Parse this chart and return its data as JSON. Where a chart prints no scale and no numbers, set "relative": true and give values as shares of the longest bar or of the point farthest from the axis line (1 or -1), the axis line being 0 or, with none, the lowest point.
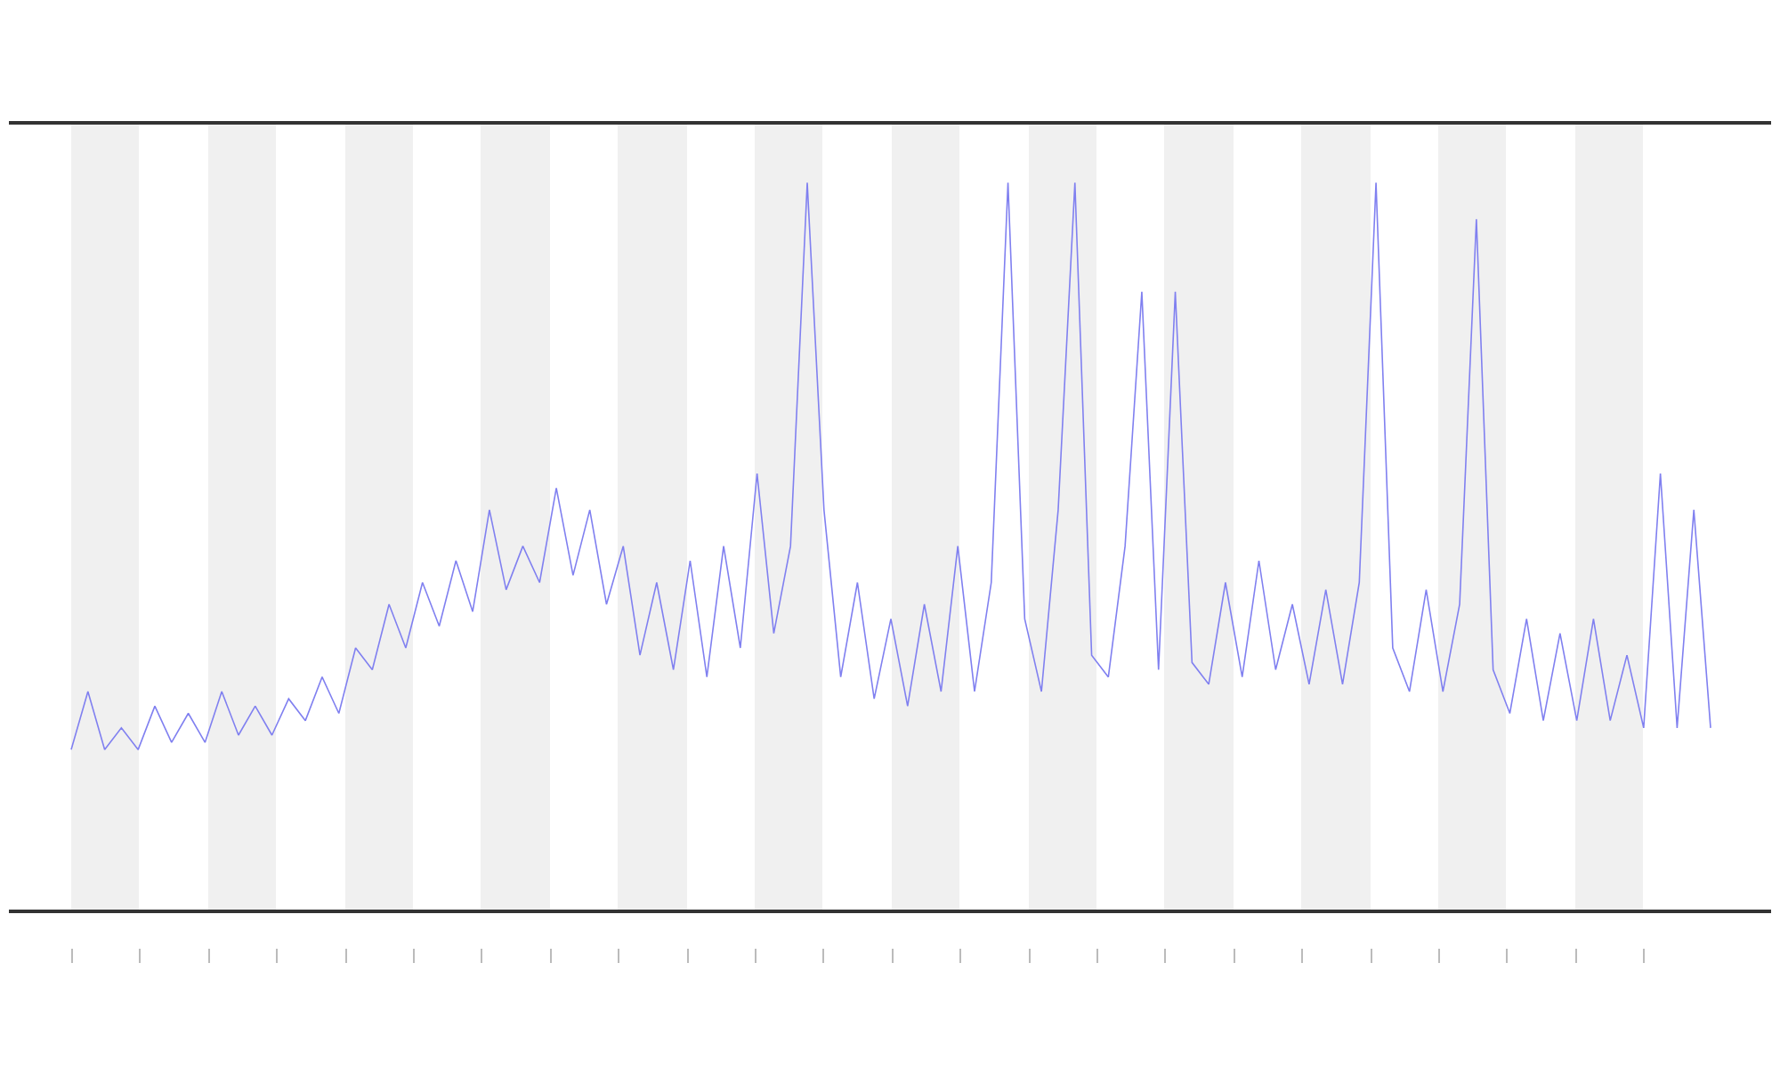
{
  "chart_data": {
    "type": "line",
    "relative": true,
    "marker": "none",
    "line_style": "solid",
    "categories": [
      null,
      null,
      null,
      null,
      null,
      null,
      null,
      null,
      null,
      null,
      null,
      null,
      null,
      null,
      null,
      null,
      null,
      null,
      null,
      null,
      null,
      null,
      null,
      null,
      null,
      null,
      null,
      null,
      null,
      null,
      null,
      null,
      null,
      null,
      null,
      null,
      null,
      null,
      null,
      null,
      null,
      null,
      null,
      null,
      null,
      null,
      null,
      null,
      null,
      null,
      null,
      null,
      null,
      null,
      null,
      null,
      null,
      null,
      null,
      null,
      null,
      null,
      null,
      null,
      null,
      null,
      null,
      null,
      null,
      null,
      null,
      null,
      null,
      null,
      null,
      null,
      null,
      null,
      null,
      null,
      null,
      null,
      null,
      null,
      null,
      null,
      null,
      null,
      null,
      null,
      null,
      null,
      null,
      null,
      null,
      null,
      null,
      null,
      null
    ],
    "series": [
      {
        "color": "#8080f0",
        "values": [
          0.22,
          0.3,
          0.22,
          0.25,
          0.22,
          0.28,
          0.23,
          0.27,
          0.23,
          0.3,
          0.24,
          0.28,
          0.24,
          0.29,
          0.26,
          0.32,
          0.27,
          0.36,
          0.33,
          0.42,
          0.36,
          0.45,
          0.39,
          0.48,
          0.41,
          0.55,
          0.44,
          0.5,
          0.45,
          0.58,
          0.46,
          0.55,
          0.42,
          0.5,
          0.35,
          0.45,
          0.33,
          0.48,
          0.32,
          0.5,
          0.36,
          0.6,
          0.38,
          0.5,
          1.0,
          0.55,
          0.32,
          0.45,
          0.29,
          0.4,
          0.28,
          0.42,
          0.3,
          0.5,
          0.3,
          0.45,
          1.0,
          0.4,
          0.3,
          0.55,
          1.0,
          0.35,
          0.32,
          0.5,
          0.85,
          0.33,
          0.85,
          0.34,
          0.31,
          0.45,
          0.32,
          0.48,
          0.33,
          0.42,
          0.31,
          0.44,
          0.31,
          0.45,
          1.0,
          0.36,
          0.3,
          0.44,
          0.3,
          0.42,
          0.95,
          0.33,
          0.27,
          0.4,
          0.26,
          0.38,
          0.26,
          0.4,
          0.26,
          0.35,
          0.25,
          0.6,
          0.25,
          0.55,
          0.25
        ]
      }
    ]
  }
}
